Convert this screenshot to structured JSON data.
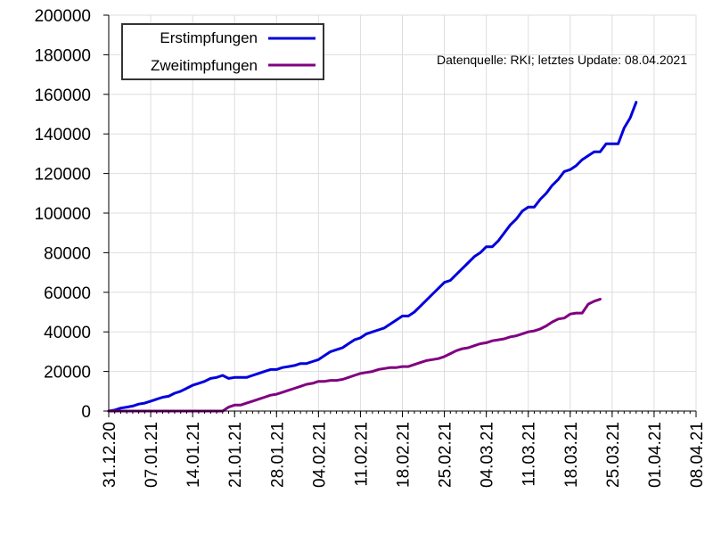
{
  "chart_data": {
    "type": "line",
    "source_note": "Datenquelle: RKI; letztes Update: 08.04.2021",
    "ylim": [
      0,
      200000
    ],
    "yticks": [
      "0",
      "20000",
      "40000",
      "60000",
      "80000",
      "100000",
      "120000",
      "140000",
      "160000",
      "180000",
      "200000"
    ],
    "xticks": [
      {
        "label": "31.12.20",
        "day": 0
      },
      {
        "label": "07.01.21",
        "day": 7
      },
      {
        "label": "14.01.21",
        "day": 14
      },
      {
        "label": "21.01.21",
        "day": 21
      },
      {
        "label": "28.01.21",
        "day": 28
      },
      {
        "label": "04.02.21",
        "day": 35
      },
      {
        "label": "11.02.21",
        "day": 42
      },
      {
        "label": "18.02.21",
        "day": 49
      },
      {
        "label": "25.02.21",
        "day": 56
      },
      {
        "label": "04.03.21",
        "day": 63
      },
      {
        "label": "11.03.21",
        "day": 70
      },
      {
        "label": "18.03.21",
        "day": 77
      },
      {
        "label": "25.03.21",
        "day": 84
      },
      {
        "label": "01.04.21",
        "day": 91
      },
      {
        "label": "08.04.21",
        "day": 98
      }
    ],
    "grid": true,
    "legend": "top-left",
    "series": [
      {
        "name": "Erstimpfungen",
        "color": "#0000dd",
        "points": [
          [
            0,
            0
          ],
          [
            1,
            500
          ],
          [
            2,
            1500
          ],
          [
            3,
            2000
          ],
          [
            4,
            2500
          ],
          [
            5,
            3500
          ],
          [
            6,
            4000
          ],
          [
            7,
            5000
          ],
          [
            8,
            6000
          ],
          [
            9,
            7000
          ],
          [
            10,
            7500
          ],
          [
            11,
            9000
          ],
          [
            12,
            10000
          ],
          [
            13,
            11500
          ],
          [
            14,
            13000
          ],
          [
            15,
            14000
          ],
          [
            16,
            15000
          ],
          [
            17,
            16500
          ],
          [
            18,
            17000
          ],
          [
            19,
            18000
          ],
          [
            20,
            16500
          ],
          [
            21,
            17000
          ],
          [
            22,
            17000
          ],
          [
            23,
            17000
          ],
          [
            24,
            18000
          ],
          [
            25,
            19000
          ],
          [
            26,
            20000
          ],
          [
            27,
            21000
          ],
          [
            28,
            21000
          ],
          [
            29,
            22000
          ],
          [
            30,
            22500
          ],
          [
            31,
            23000
          ],
          [
            32,
            24000
          ],
          [
            33,
            24000
          ],
          [
            34,
            25000
          ],
          [
            35,
            26000
          ],
          [
            36,
            28000
          ],
          [
            37,
            30000
          ],
          [
            38,
            31000
          ],
          [
            39,
            32000
          ],
          [
            40,
            34000
          ],
          [
            41,
            36000
          ],
          [
            42,
            37000
          ],
          [
            43,
            39000
          ],
          [
            44,
            40000
          ],
          [
            45,
            41000
          ],
          [
            46,
            42000
          ],
          [
            47,
            44000
          ],
          [
            48,
            46000
          ],
          [
            49,
            48000
          ],
          [
            50,
            48000
          ],
          [
            51,
            50000
          ],
          [
            52,
            53000
          ],
          [
            53,
            56000
          ],
          [
            54,
            59000
          ],
          [
            55,
            62000
          ],
          [
            56,
            65000
          ],
          [
            57,
            66000
          ],
          [
            58,
            69000
          ],
          [
            59,
            72000
          ],
          [
            60,
            75000
          ],
          [
            61,
            78000
          ],
          [
            62,
            80000
          ],
          [
            63,
            83000
          ],
          [
            64,
            83000
          ],
          [
            65,
            86000
          ],
          [
            66,
            90000
          ],
          [
            67,
            94000
          ],
          [
            68,
            97000
          ],
          [
            69,
            101000
          ],
          [
            70,
            103000
          ],
          [
            71,
            103000
          ],
          [
            72,
            107000
          ],
          [
            73,
            110000
          ],
          [
            74,
            114000
          ],
          [
            75,
            117000
          ],
          [
            76,
            121000
          ],
          [
            77,
            122000
          ],
          [
            78,
            124000
          ],
          [
            79,
            127000
          ],
          [
            80,
            129000
          ],
          [
            81,
            131000
          ],
          [
            82,
            131000
          ],
          [
            83,
            135000
          ],
          [
            84,
            135000
          ],
          [
            85,
            135000
          ],
          [
            86,
            143000
          ],
          [
            87,
            148000
          ],
          [
            88,
            156000
          ]
        ]
      },
      {
        "name": "Zweitimpfungen",
        "color": "#800080",
        "points": [
          [
            0,
            0
          ],
          [
            19,
            0
          ],
          [
            20,
            2000
          ],
          [
            21,
            3000
          ],
          [
            22,
            3000
          ],
          [
            23,
            4000
          ],
          [
            24,
            5000
          ],
          [
            25,
            6000
          ],
          [
            26,
            7000
          ],
          [
            27,
            8000
          ],
          [
            28,
            8500
          ],
          [
            29,
            9500
          ],
          [
            30,
            10500
          ],
          [
            31,
            11500
          ],
          [
            32,
            12500
          ],
          [
            33,
            13500
          ],
          [
            34,
            14000
          ],
          [
            35,
            15000
          ],
          [
            36,
            15000
          ],
          [
            37,
            15500
          ],
          [
            38,
            15500
          ],
          [
            39,
            16000
          ],
          [
            40,
            17000
          ],
          [
            41,
            18000
          ],
          [
            42,
            19000
          ],
          [
            43,
            19500
          ],
          [
            44,
            20000
          ],
          [
            45,
            21000
          ],
          [
            46,
            21500
          ],
          [
            47,
            22000
          ],
          [
            48,
            22000
          ],
          [
            49,
            22500
          ],
          [
            50,
            22500
          ],
          [
            51,
            23500
          ],
          [
            52,
            24500
          ],
          [
            53,
            25500
          ],
          [
            54,
            26000
          ],
          [
            55,
            26500
          ],
          [
            56,
            27500
          ],
          [
            57,
            29000
          ],
          [
            58,
            30500
          ],
          [
            59,
            31500
          ],
          [
            60,
            32000
          ],
          [
            61,
            33000
          ],
          [
            62,
            34000
          ],
          [
            63,
            34500
          ],
          [
            64,
            35500
          ],
          [
            65,
            36000
          ],
          [
            66,
            36500
          ],
          [
            67,
            37500
          ],
          [
            68,
            38000
          ],
          [
            69,
            39000
          ],
          [
            70,
            40000
          ],
          [
            71,
            40500
          ],
          [
            72,
            41500
          ],
          [
            73,
            43000
          ],
          [
            74,
            45000
          ],
          [
            75,
            46500
          ],
          [
            76,
            47000
          ],
          [
            77,
            49000
          ],
          [
            78,
            49500
          ],
          [
            79,
            49500
          ],
          [
            80,
            54000
          ],
          [
            81,
            55500
          ],
          [
            82,
            56500
          ]
        ]
      }
    ]
  }
}
